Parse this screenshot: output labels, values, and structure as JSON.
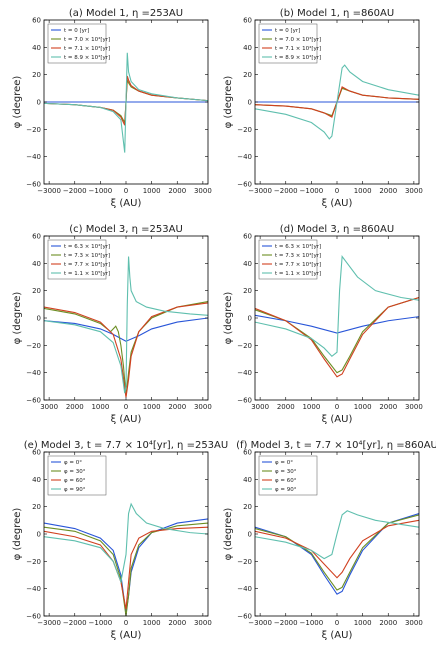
{
  "chart_data": [
    {
      "type": "line",
      "title": "(a) Model 1, η =253AU",
      "xlabel": "ξ (AU)",
      "ylabel": "φ (degree)",
      "xlim": [
        -3200,
        3200
      ],
      "ylim": [
        -60,
        60
      ],
      "xticks": [
        -3000,
        -2000,
        -1000,
        0,
        1000,
        2000,
        3000
      ],
      "xtick_labels": [
        "−3000",
        "−2000",
        "−1000",
        "0",
        "1000",
        "2000",
        "3000"
      ],
      "yticks": [
        -60,
        -40,
        -20,
        0,
        20,
        40,
        60
      ],
      "legend": "top-left",
      "grid": false,
      "series": [
        {
          "name": "t = 0 [yr]",
          "color": "#2855d8",
          "x": [
            -3200,
            -1000,
            0,
            1000,
            3200
          ],
          "y": [
            0,
            0,
            0,
            0,
            0
          ]
        },
        {
          "name": "t = 7.0 × 10⁴[yr]",
          "color": "#6b8e23",
          "x": [
            -3200,
            -2000,
            -1000,
            -500,
            -200,
            -50,
            0,
            50,
            100,
            200,
            500,
            1000,
            2000,
            3200
          ],
          "y": [
            -1,
            -2,
            -4,
            -6,
            -10,
            -15,
            0,
            16,
            14,
            11,
            8,
            5,
            3,
            1
          ]
        },
        {
          "name": "t = 7.1 × 10⁴[yr]",
          "color": "#d04020",
          "x": [
            -3200,
            -2000,
            -1000,
            -500,
            -200,
            -50,
            0,
            50,
            100,
            200,
            500,
            1000,
            2000,
            3200
          ],
          "y": [
            -1,
            -2,
            -4,
            -6,
            -11,
            -17,
            0,
            19,
            16,
            12,
            8,
            5,
            3,
            1
          ]
        },
        {
          "name": "t = 8.9 × 10⁴[yr]",
          "color": "#5fbfae",
          "x": [
            -3200,
            -2000,
            -1000,
            -500,
            -200,
            -50,
            0,
            50,
            100,
            200,
            500,
            1000,
            2000,
            3200
          ],
          "y": [
            -1,
            -2,
            -4,
            -7,
            -13,
            -37,
            0,
            36,
            22,
            15,
            9,
            6,
            3,
            1
          ]
        }
      ]
    },
    {
      "type": "line",
      "title": "(b) Model 1, η =860AU",
      "xlabel": "ξ (AU)",
      "ylabel": "φ (degree)",
      "xlim": [
        -3200,
        3200
      ],
      "ylim": [
        -60,
        60
      ],
      "xticks": [
        -3000,
        -2000,
        -1000,
        0,
        1000,
        2000,
        3000
      ],
      "xtick_labels": [
        "−3000",
        "−2000",
        "−1000",
        "0",
        "1000",
        "2000",
        "3000"
      ],
      "yticks": [
        -60,
        -40,
        -20,
        0,
        20,
        40,
        60
      ],
      "legend": "top-left",
      "grid": false,
      "series": [
        {
          "name": "t = 0 [yr]",
          "color": "#2855d8",
          "x": [
            -3200,
            0,
            3200
          ],
          "y": [
            0,
            0,
            0
          ]
        },
        {
          "name": "t = 7.0 × 10⁴[yr]",
          "color": "#6b8e23",
          "x": [
            -3200,
            -2000,
            -1000,
            -500,
            -200,
            0,
            200,
            500,
            1000,
            2000,
            3200
          ],
          "y": [
            -2,
            -3,
            -5,
            -8,
            -10,
            0,
            10,
            8,
            5,
            3,
            2
          ]
        },
        {
          "name": "t = 7.1 × 10⁴[yr]",
          "color": "#d04020",
          "x": [
            -3200,
            -2000,
            -1000,
            -500,
            -200,
            0,
            200,
            500,
            1000,
            2000,
            3200
          ],
          "y": [
            -2,
            -3,
            -5,
            -8,
            -11,
            0,
            11,
            8,
            5,
            3,
            2
          ]
        },
        {
          "name": "t = 8.9 × 10⁴[yr]",
          "color": "#5fbfae",
          "x": [
            -3200,
            -2000,
            -1000,
            -500,
            -300,
            -200,
            0,
            200,
            300,
            500,
            1000,
            2000,
            3200
          ],
          "y": [
            -5,
            -9,
            -15,
            -22,
            -27,
            -25,
            0,
            25,
            27,
            22,
            15,
            9,
            5
          ]
        }
      ]
    },
    {
      "type": "line",
      "title": "(c) Model 3, η =253AU",
      "xlabel": "ξ (AU)",
      "ylabel": "φ (degree)",
      "xlim": [
        -3200,
        3200
      ],
      "ylim": [
        -60,
        60
      ],
      "xticks": [
        -3000,
        -2000,
        -1000,
        0,
        1000,
        2000,
        3000
      ],
      "xtick_labels": [
        "3000",
        "2000",
        "1000",
        "0",
        "1000",
        "2000",
        "3000"
      ],
      "yticks": [
        -60,
        -40,
        -20,
        0,
        20,
        40,
        60
      ],
      "legend": "top-left",
      "grid": false,
      "series": [
        {
          "name": "t = 6.3 × 10⁴[yr]",
          "color": "#2855d8",
          "x": [
            -3200,
            -2000,
            -1000,
            -500,
            0,
            500,
            1000,
            2000,
            3200
          ],
          "y": [
            -2,
            -4,
            -8,
            -12,
            -17,
            -13,
            -8,
            -3,
            0
          ]
        },
        {
          "name": "t = 7.3 × 10⁴[yr]",
          "color": "#6b8e23",
          "x": [
            -3200,
            -2000,
            -1000,
            -600,
            -400,
            -300,
            -200,
            -100,
            0,
            100,
            200,
            500,
            1000,
            2000,
            3200
          ],
          "y": [
            7,
            3,
            -4,
            -10,
            -6,
            -10,
            -20,
            -35,
            -57,
            -40,
            -25,
            -10,
            0,
            8,
            12
          ]
        },
        {
          "name": "t = 7.7 × 10⁴[yr]",
          "color": "#d04020",
          "x": [
            -3200,
            -2000,
            -1000,
            -500,
            -200,
            0,
            100,
            200,
            500,
            1000,
            2000,
            3200
          ],
          "y": [
            8,
            4,
            -3,
            -12,
            -30,
            -58,
            -45,
            -28,
            -10,
            1,
            8,
            11
          ]
        },
        {
          "name": "t = 1.1 × 10⁵[yr]",
          "color": "#5fbfae",
          "x": [
            -3200,
            -2000,
            -1000,
            -500,
            -200,
            -50,
            0,
            50,
            100,
            150,
            200,
            400,
            800,
            1500,
            2500,
            3200
          ],
          "y": [
            -2,
            -5,
            -10,
            -18,
            -35,
            -55,
            -50,
            10,
            45,
            30,
            20,
            12,
            8,
            5,
            3,
            2
          ]
        }
      ]
    },
    {
      "type": "line",
      "title": "(d) Model 3, η =860AU",
      "xlabel": "ξ (AU)",
      "ylabel": "φ (degree)",
      "xlim": [
        -3200,
        3200
      ],
      "ylim": [
        -60,
        60
      ],
      "xticks": [
        -3000,
        -2000,
        -1000,
        0,
        1000,
        2000,
        3000
      ],
      "xtick_labels": [
        "3000",
        "2000",
        "1000",
        "0",
        "1000",
        "2000",
        "3000"
      ],
      "yticks": [
        -60,
        -40,
        -20,
        0,
        20,
        40,
        60
      ],
      "legend": "top-left",
      "grid": false,
      "series": [
        {
          "name": "t = 6.3 × 10⁴[yr]",
          "color": "#2855d8",
          "x": [
            -3200,
            -2000,
            -1000,
            0,
            1000,
            2000,
            3200
          ],
          "y": [
            2,
            -2,
            -6,
            -11,
            -6,
            -2,
            1
          ]
        },
        {
          "name": "t = 7.3 × 10⁴[yr]",
          "color": "#6b8e23",
          "x": [
            -3200,
            -2000,
            -1000,
            -500,
            0,
            200,
            500,
            1000,
            2000,
            3200
          ],
          "y": [
            6,
            -2,
            -15,
            -28,
            -40,
            -38,
            -28,
            -10,
            8,
            15
          ]
        },
        {
          "name": "t = 7.7 × 10⁴[yr]",
          "color": "#d04020",
          "x": [
            -3200,
            -2000,
            -1000,
            -500,
            0,
            200,
            500,
            1000,
            2000,
            3200
          ],
          "y": [
            7,
            -2,
            -16,
            -30,
            -43,
            -41,
            -30,
            -12,
            8,
            15
          ]
        },
        {
          "name": "t = 1.1 × 10⁵[yr]",
          "color": "#5fbfae",
          "x": [
            -3200,
            -2000,
            -1000,
            -500,
            -200,
            0,
            100,
            200,
            400,
            800,
            1500,
            2500,
            3200
          ],
          "y": [
            -3,
            -8,
            -15,
            -22,
            -28,
            -25,
            20,
            45,
            40,
            30,
            20,
            15,
            13
          ]
        }
      ]
    },
    {
      "type": "line",
      "title": "(e) Model 3, t = 7.7 × 10⁴[yr], η =253AU",
      "xlabel": "ξ (AU)",
      "ylabel": "φ (degree)",
      "xlim": [
        -3200,
        3200
      ],
      "ylim": [
        -60,
        60
      ],
      "xticks": [
        -3000,
        -2000,
        -1000,
        0,
        1000,
        2000,
        3000
      ],
      "xtick_labels": [
        "−3000",
        "−2000",
        "−1000",
        "0",
        "1000",
        "2000",
        "3000"
      ],
      "yticks": [
        -60,
        -40,
        -20,
        0,
        20,
        40,
        60
      ],
      "legend": "top-left",
      "grid": false,
      "series": [
        {
          "name": "φ = 0°",
          "color": "#2855d8",
          "x": [
            -3200,
            -2000,
            -1000,
            -500,
            -200,
            0,
            100,
            200,
            500,
            1000,
            2000,
            3200
          ],
          "y": [
            8,
            4,
            -3,
            -12,
            -30,
            -58,
            -45,
            -28,
            -10,
            1,
            8,
            11
          ]
        },
        {
          "name": "φ = 30°",
          "color": "#6b8e23",
          "x": [
            -3200,
            -2000,
            -1000,
            -500,
            -200,
            0,
            100,
            200,
            500,
            1000,
            2000,
            3200
          ],
          "y": [
            5,
            2,
            -5,
            -15,
            -33,
            -60,
            -45,
            -25,
            -8,
            1,
            6,
            8
          ]
        },
        {
          "name": "φ = 60°",
          "color": "#d04020",
          "x": [
            -3200,
            -2000,
            -1000,
            -500,
            -200,
            0,
            100,
            200,
            500,
            1000,
            2000,
            3200
          ],
          "y": [
            2,
            -2,
            -8,
            -20,
            -35,
            -55,
            -35,
            -15,
            -3,
            2,
            4,
            5
          ]
        },
        {
          "name": "φ = 90°",
          "color": "#5fbfae",
          "x": [
            -3200,
            -2000,
            -1000,
            -500,
            -200,
            0,
            100,
            200,
            400,
            800,
            1500,
            2500,
            3200
          ],
          "y": [
            -2,
            -5,
            -10,
            -20,
            -35,
            -15,
            15,
            22,
            15,
            8,
            4,
            1,
            0
          ]
        }
      ]
    },
    {
      "type": "line",
      "title": "(f) Model 3, t = 7.7 × 10⁴[yr], η =860AU",
      "xlabel": "ξ (AU)",
      "ylabel": "φ (degree)",
      "xlim": [
        -3200,
        3200
      ],
      "ylim": [
        -60,
        60
      ],
      "xticks": [
        -3000,
        -2000,
        -1000,
        0,
        1000,
        2000,
        3000
      ],
      "xtick_labels": [
        "−3000",
        "−2000",
        "−1000",
        "0",
        "1000",
        "2000",
        "3000"
      ],
      "yticks": [
        -60,
        -40,
        -20,
        0,
        20,
        40,
        60
      ],
      "legend": "top-left",
      "grid": false,
      "series": [
        {
          "name": "φ = 0°",
          "color": "#2855d8",
          "x": [
            -3200,
            -2000,
            -1000,
            -500,
            0,
            200,
            500,
            1000,
            2000,
            3200
          ],
          "y": [
            5,
            -2,
            -15,
            -30,
            -44,
            -42,
            -30,
            -12,
            8,
            15
          ]
        },
        {
          "name": "φ = 30°",
          "color": "#6b8e23",
          "x": [
            -3200,
            -2000,
            -1000,
            -500,
            0,
            200,
            500,
            1000,
            2000,
            3200
          ],
          "y": [
            4,
            -2,
            -14,
            -28,
            -41,
            -39,
            -28,
            -10,
            8,
            14
          ]
        },
        {
          "name": "φ = 60°",
          "color": "#d04020",
          "x": [
            -3200,
            -2000,
            -1000,
            -500,
            0,
            200,
            500,
            1000,
            2000,
            3200
          ],
          "y": [
            2,
            -3,
            -12,
            -22,
            -32,
            -28,
            -18,
            -5,
            6,
            10
          ]
        },
        {
          "name": "φ = 90°",
          "color": "#5fbfae",
          "x": [
            -3200,
            -2000,
            -1000,
            -500,
            -200,
            0,
            200,
            400,
            800,
            1500,
            2500,
            3200
          ],
          "y": [
            -2,
            -6,
            -12,
            -18,
            -15,
            0,
            14,
            17,
            14,
            10,
            7,
            5
          ]
        }
      ]
    }
  ]
}
